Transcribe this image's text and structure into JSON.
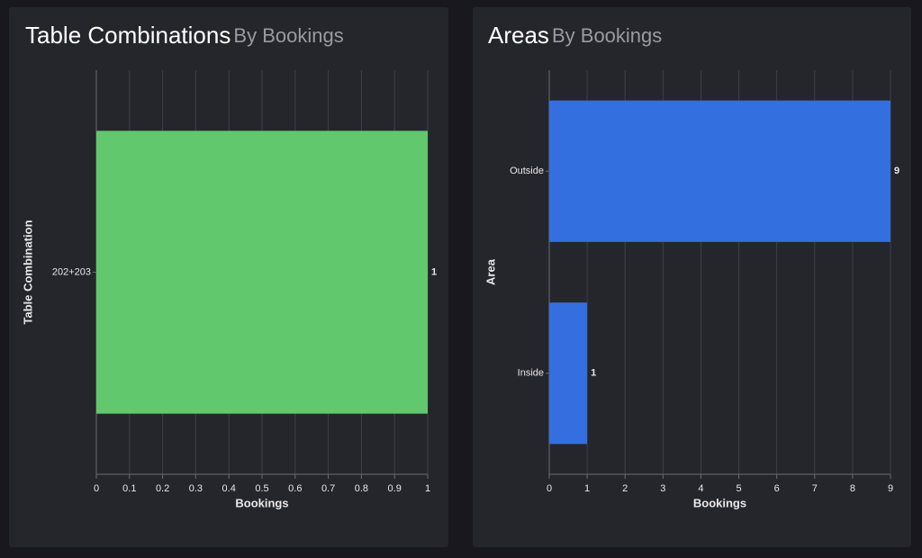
{
  "chart_data": [
    {
      "type": "bar",
      "orientation": "horizontal",
      "title": "Table Combinations",
      "subtitle": "By Bookings",
      "x_label": "Bookings",
      "y_label": "Table Combination",
      "categories": [
        "202+203"
      ],
      "values": [
        1
      ],
      "color": "#61c86e",
      "xlim": [
        0,
        1
      ],
      "xticks": [
        0,
        0.1,
        0.2,
        0.3,
        0.4,
        0.5,
        0.6,
        0.7,
        0.8,
        0.9,
        1
      ],
      "grid": true
    },
    {
      "type": "bar",
      "orientation": "horizontal",
      "title": "Areas",
      "subtitle": "By Bookings",
      "x_label": "Bookings",
      "y_label": "Area",
      "categories": [
        "Outside",
        "Inside"
      ],
      "values": [
        9,
        1
      ],
      "color": "#336fdf",
      "xlim": [
        0,
        9
      ],
      "xticks": [
        0,
        1,
        2,
        3,
        4,
        5,
        6,
        7,
        8,
        9
      ],
      "grid": true
    }
  ]
}
